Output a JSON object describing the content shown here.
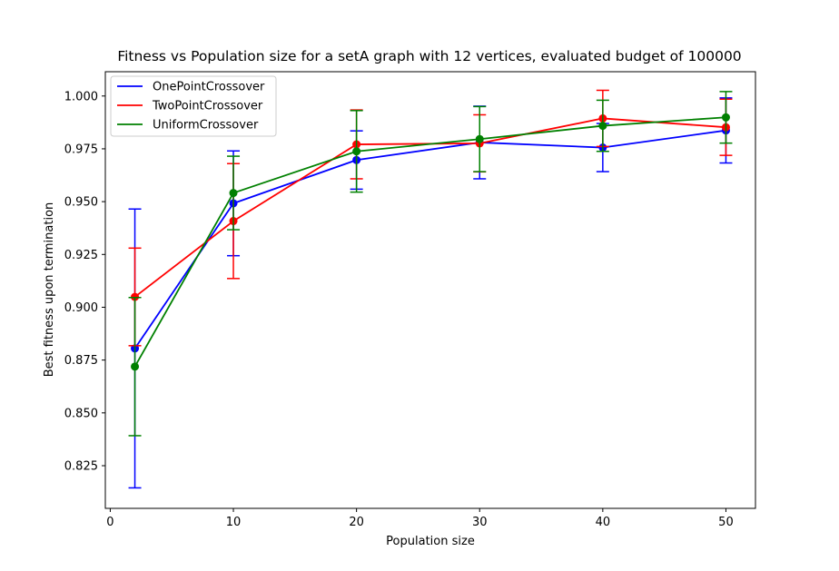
{
  "chart_data": {
    "type": "line",
    "title": "Fitness vs Population size for a setA graph with 12 vertices, evaluated budget of 100000",
    "xlabel": "Population size",
    "ylabel": "Best fitness upon termination",
    "xlim": [
      -0.4,
      52.4
    ],
    "ylim": [
      0.8048,
      1.0115
    ],
    "xticks": [
      0,
      10,
      20,
      30,
      40,
      50
    ],
    "xtick_labels": [
      "0",
      "10",
      "20",
      "30",
      "40",
      "50"
    ],
    "yticks": [
      0.825,
      0.85,
      0.875,
      0.9,
      0.925,
      0.95,
      0.975,
      1.0
    ],
    "ytick_labels": [
      "0.825",
      "0.850",
      "0.875",
      "0.900",
      "0.925",
      "0.950",
      "0.975",
      "1.000"
    ],
    "grid": false,
    "legend_position": "top-left",
    "x": [
      2,
      10,
      20,
      30,
      40,
      50
    ],
    "series": [
      {
        "name": "OnePointCrossover",
        "color": "#0000ff",
        "values": [
          0.8805,
          0.9492,
          0.9697,
          0.978,
          0.9756,
          0.9837
        ],
        "error": [
          0.066,
          0.0248,
          0.0138,
          0.0172,
          0.0114,
          0.0154
        ]
      },
      {
        "name": "TwoPointCrossover",
        "color": "#ff0000",
        "values": [
          0.9049,
          0.9408,
          0.9771,
          0.9776,
          0.9894,
          0.9852
        ],
        "error": [
          0.0231,
          0.0272,
          0.0163,
          0.0135,
          0.0133,
          0.0133
        ]
      },
      {
        "name": "UniformCrossover",
        "color": "#008000",
        "values": [
          0.8719,
          0.9541,
          0.9738,
          0.9796,
          0.9859,
          0.9899
        ],
        "error": [
          0.0327,
          0.0174,
          0.0193,
          0.0154,
          0.0121,
          0.0122
        ]
      }
    ]
  }
}
